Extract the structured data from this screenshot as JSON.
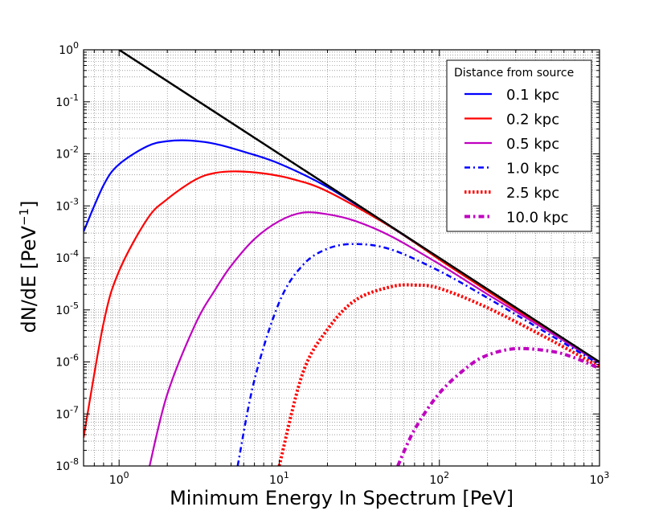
{
  "chart_data": {
    "type": "line",
    "xscale": "log",
    "yscale": "log",
    "xlim": [
      0.6,
      1000
    ],
    "ylim": [
      1e-08,
      1
    ],
    "xlabel": "Minimum Energy In Spectrum [PeV]",
    "ylabel": {
      "main": "dN/dE [PeV",
      "sup": "−1",
      "close": "]"
    },
    "x_ticks": [
      {
        "base": "10",
        "exp": "0"
      },
      {
        "base": "10",
        "exp": "1"
      },
      {
        "base": "10",
        "exp": "2"
      },
      {
        "base": "10",
        "exp": "3"
      }
    ],
    "y_ticks": [
      {
        "base": "10",
        "exp": "0"
      },
      {
        "base": "10",
        "exp": "-1"
      },
      {
        "base": "10",
        "exp": "-2"
      },
      {
        "base": "10",
        "exp": "-3"
      },
      {
        "base": "10",
        "exp": "-4"
      },
      {
        "base": "10",
        "exp": "-5"
      },
      {
        "base": "10",
        "exp": "-6"
      },
      {
        "base": "10",
        "exp": "-7"
      },
      {
        "base": "10",
        "exp": "-8"
      }
    ],
    "grid": true,
    "legend": {
      "title": "Distance from source",
      "position": "top-right"
    },
    "series": [
      {
        "name": "0.1 kpc",
        "color": "#0000ff",
        "style": "solid",
        "x": [
          0.6,
          0.8,
          1.0,
          1.5,
          2.0,
          2.8,
          4.0,
          6.0,
          10,
          20,
          50,
          100,
          200,
          500,
          1000
        ],
        "y": [
          0.00032,
          0.0025,
          0.0063,
          0.014,
          0.0175,
          0.018,
          0.0155,
          0.011,
          0.0065,
          0.0023,
          0.00039,
          9.6e-05,
          2.4e-05,
          3.9e-06,
          1e-06
        ]
      },
      {
        "name": "0.2 kpc",
        "color": "#ff0000",
        "style": "solid",
        "x": [
          0.6,
          0.8,
          1.0,
          1.5,
          2.0,
          3.0,
          4.0,
          5.5,
          8.0,
          12,
          20,
          50,
          100,
          200,
          500,
          1000
        ],
        "y": [
          3.5e-08,
          5.6e-06,
          5.6e-05,
          0.00056,
          0.00135,
          0.0032,
          0.0043,
          0.0046,
          0.0042,
          0.0033,
          0.0019,
          0.00039,
          9.3e-05,
          2.3e-05,
          3.8e-06,
          1e-06
        ]
      },
      {
        "name": "0.5 kpc",
        "color": "#bf00bf",
        "style": "solid",
        "x": [
          1.55,
          2.0,
          3.0,
          4.0,
          5.0,
          7.0,
          10,
          14,
          20,
          30,
          50,
          100,
          200,
          500,
          1000
        ],
        "y": [
          1e-08,
          2.4e-07,
          5.4e-06,
          2.5e-05,
          7e-05,
          0.00023,
          0.00051,
          0.00074,
          0.00069,
          0.00051,
          0.00026,
          7.6e-05,
          2e-05,
          3.6e-06,
          9.5e-07
        ]
      },
      {
        "name": "1.0 kpc",
        "color": "#0000ff",
        "style": "dashdot",
        "x": [
          5.5,
          7.0,
          10,
          14,
          20,
          30,
          50,
          100,
          200,
          500,
          1000
        ],
        "y": [
          1e-08,
          4.5e-07,
          1.4e-05,
          7.2e-05,
          0.00015,
          0.000185,
          0.000145,
          5.6e-05,
          1.7e-05,
          3.2e-06,
          9e-07
        ]
      },
      {
        "name": "2.5 kpc",
        "color": "#ff0000",
        "style": "dotted",
        "x": [
          10,
          14,
          20,
          30,
          50,
          70,
          100,
          200,
          500,
          1000
        ],
        "y": [
          1e-08,
          6e-07,
          4.2e-06,
          1.55e-05,
          2.8e-05,
          3e-05,
          2.6e-05,
          1.1e-05,
          2.6e-06,
          8e-07
        ]
      },
      {
        "name": "10.0 kpc",
        "color": "#bf00bf",
        "style": "dashdot-thick",
        "x": [
          55,
          70,
          100,
          150,
          200,
          300,
          500,
          700,
          1000
        ],
        "y": [
          1e-08,
          5e-08,
          2.5e-07,
          8e-07,
          1.35e-06,
          1.8e-06,
          1.6e-06,
          1.2e-06,
          7.5e-07
        ]
      },
      {
        "name": "",
        "color": "#000000",
        "style": "solid-black",
        "x": [
          1.0,
          1000
        ],
        "y": [
          1.0,
          1e-06
        ]
      }
    ]
  }
}
